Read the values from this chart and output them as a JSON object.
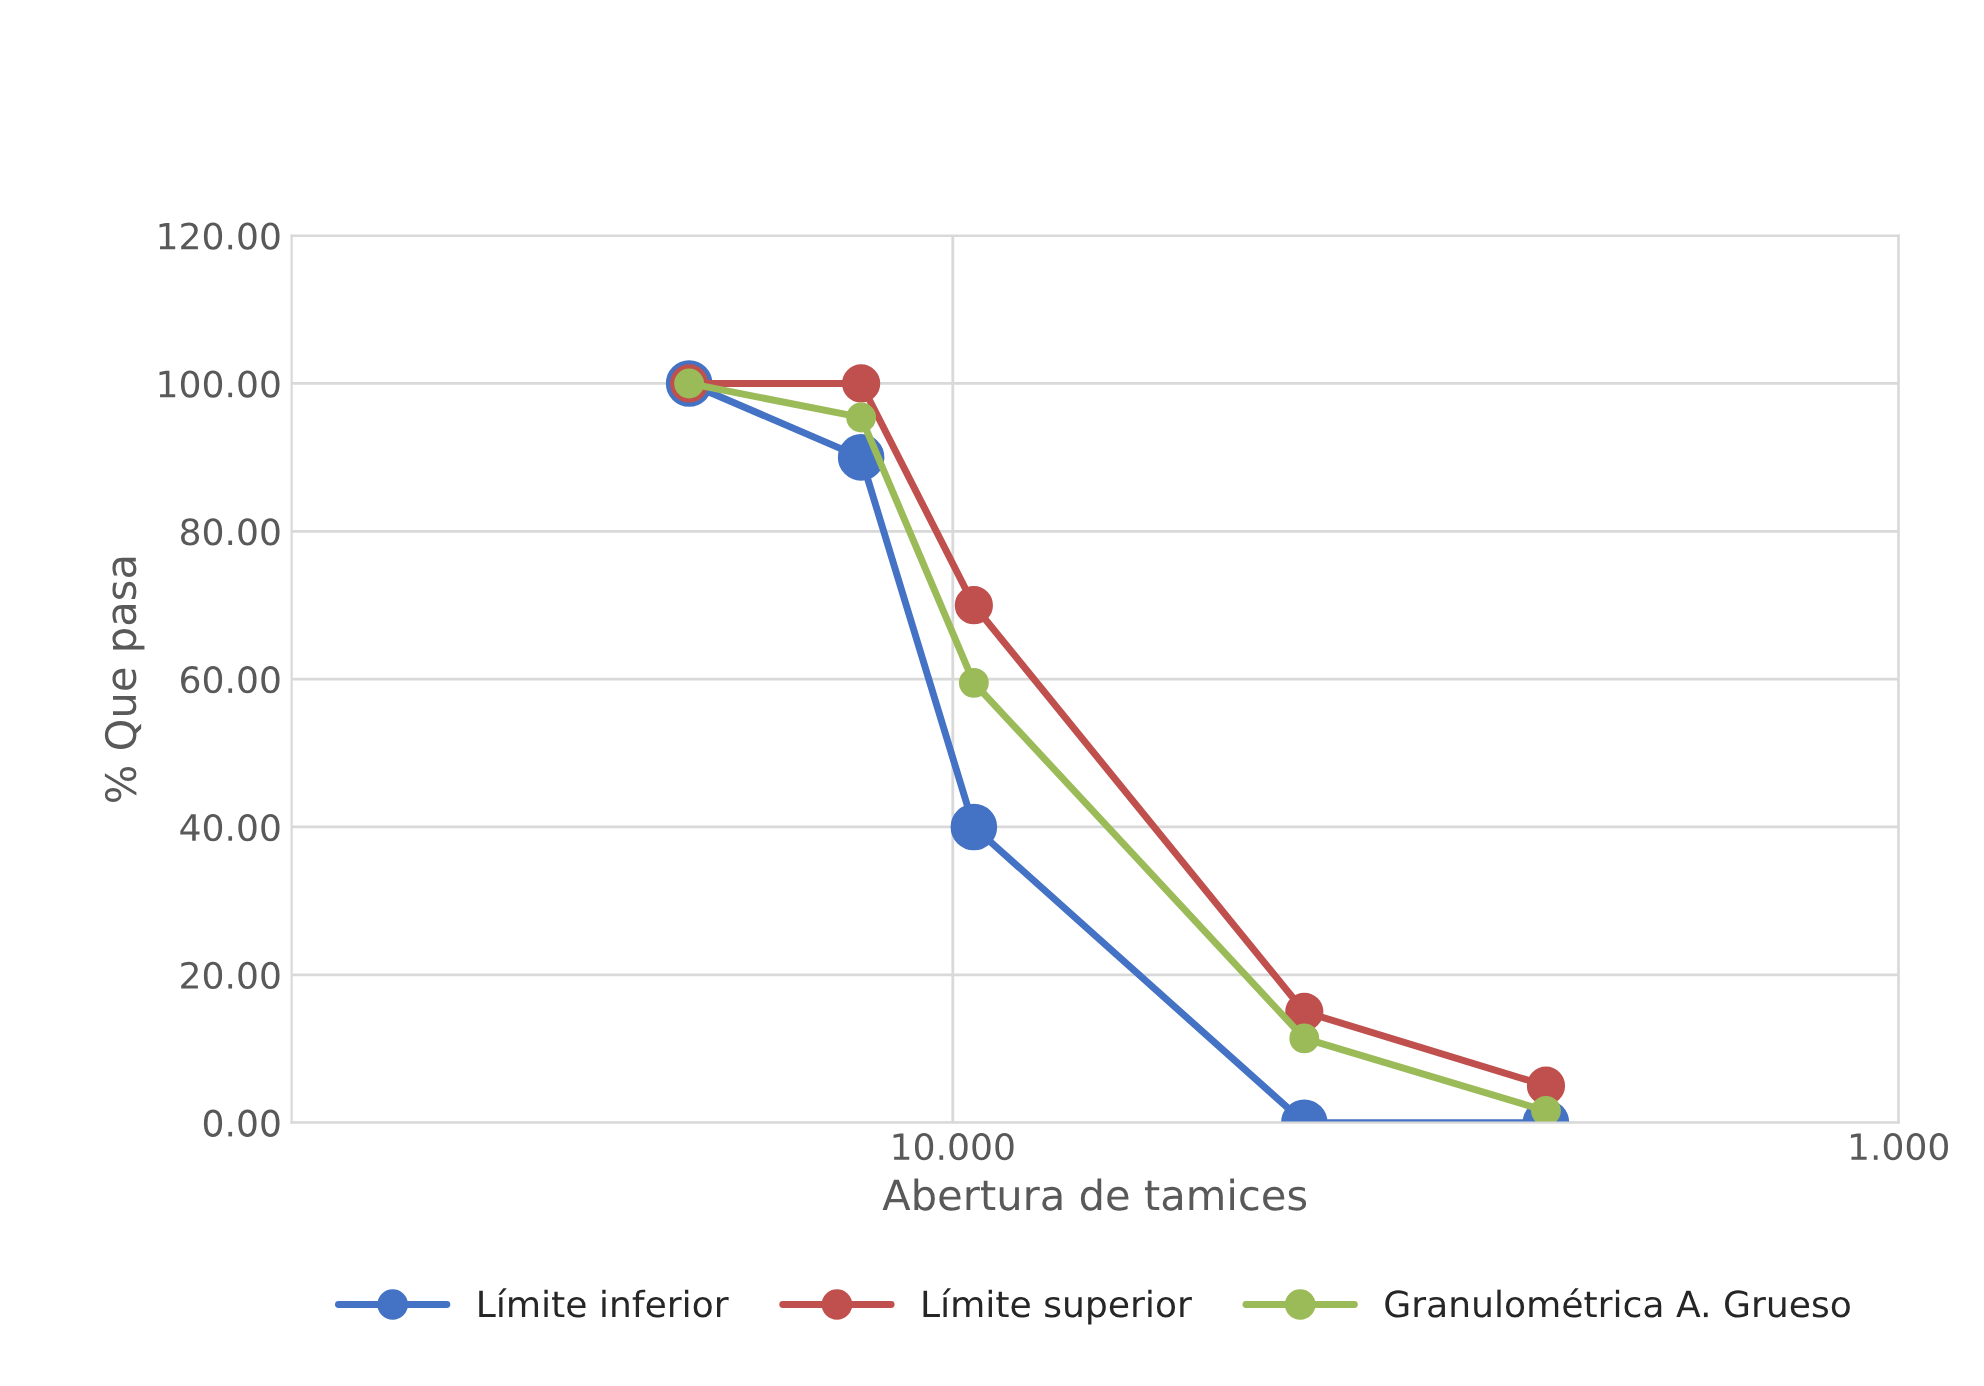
{
  "chart_data": {
    "type": "line",
    "xlabel": "Abertura de tamices",
    "ylabel": "% Que pasa",
    "x": [
      19.0,
      12.5,
      9.5,
      4.25,
      2.36
    ],
    "series": [
      {
        "name": "Límite inferior",
        "color": "#4472c4",
        "values": [
          100,
          90,
          40,
          0,
          0
        ]
      },
      {
        "name": "Límite superior",
        "color": "#c0504d",
        "values": [
          100,
          100,
          70,
          15,
          5
        ]
      },
      {
        "name": "Granulométrica A. Grueso",
        "color": "#9bbb59",
        "values": [
          100,
          95.4,
          59.5,
          11.4,
          1.6
        ]
      }
    ],
    "log": "x",
    "xlim": [
      50,
      1
    ],
    "xticks": [
      {
        "value": 10,
        "label": "10.000"
      },
      {
        "value": 1,
        "label": "1.000"
      }
    ],
    "ylim": [
      0,
      120
    ],
    "yticks": [
      {
        "value": 0,
        "label": "0.00"
      },
      {
        "value": 20,
        "label": "20.00"
      },
      {
        "value": 40,
        "label": "40.00"
      },
      {
        "value": 60,
        "label": "60.00"
      },
      {
        "value": 80,
        "label": "80.00"
      },
      {
        "value": 100,
        "label": "100.00"
      },
      {
        "value": 120,
        "label": "120.00"
      }
    ],
    "grid": true,
    "legend": "bottom",
    "marker": "circle",
    "line_style": "solid"
  }
}
